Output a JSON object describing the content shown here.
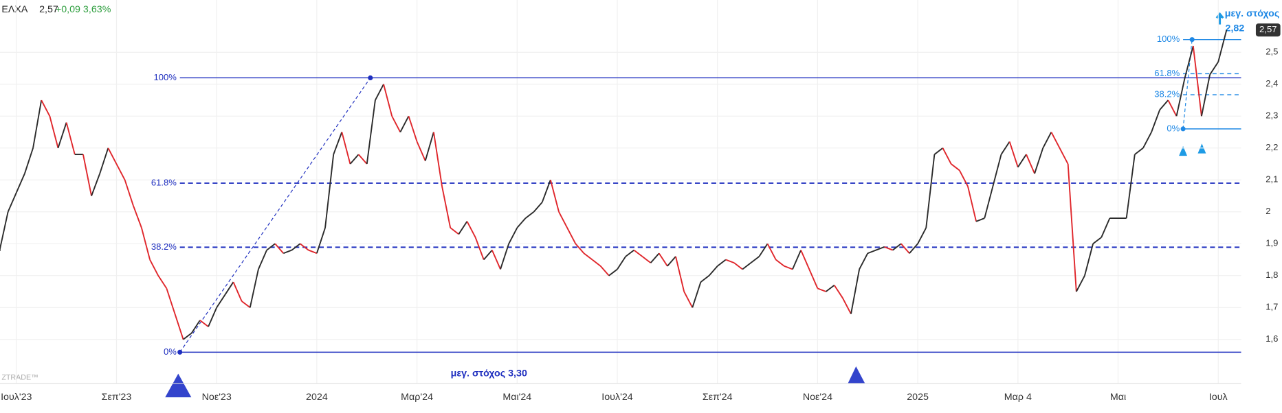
{
  "chart_data": {
    "type": "line",
    "ticker": "ΕΛΧΑ",
    "price_label": "2,57",
    "change": "+0,09 3,63%",
    "watermark": "ZTRADE™",
    "last_price": {
      "value": 2.57,
      "label": "2,57"
    },
    "categories": [
      null,
      null,
      "Ιουλ'23",
      null,
      null,
      null,
      null,
      null,
      null,
      null,
      null,
      null,
      null,
      null,
      "Σεπ'23",
      null,
      null,
      null,
      null,
      null,
      null,
      null,
      null,
      null,
      null,
      null,
      "Νοε'23",
      null,
      null,
      null,
      null,
      null,
      null,
      null,
      null,
      null,
      null,
      null,
      "2024",
      null,
      null,
      null,
      null,
      null,
      null,
      null,
      null,
      null,
      null,
      null,
      "Μαρ'24",
      null,
      null,
      null,
      null,
      null,
      null,
      null,
      null,
      null,
      null,
      null,
      "Μαι'24",
      null,
      null,
      null,
      null,
      null,
      null,
      null,
      null,
      null,
      null,
      null,
      "Ιουλ'24",
      null,
      null,
      null,
      null,
      null,
      null,
      null,
      null,
      null,
      null,
      null,
      "Σεπ'24",
      null,
      null,
      null,
      null,
      null,
      null,
      null,
      null,
      null,
      null,
      null,
      "Νοε'24",
      null,
      null,
      null,
      null,
      null,
      null,
      null,
      null,
      null,
      null,
      null,
      "2025",
      null,
      null,
      null,
      null,
      null,
      null,
      null,
      null,
      null,
      null,
      null,
      "Μαρ 4",
      null,
      null,
      null,
      null,
      null,
      null,
      null,
      null,
      null,
      null,
      null,
      "Μαι",
      null,
      null,
      null,
      null,
      null,
      null,
      null,
      null,
      null,
      null,
      null,
      "Ιουλ",
      null
    ],
    "values": [
      1.88,
      2.0,
      2.06,
      2.12,
      2.2,
      2.35,
      2.3,
      2.2,
      2.28,
      2.18,
      2.18,
      2.05,
      2.12,
      2.2,
      2.15,
      2.1,
      2.02,
      1.95,
      1.85,
      1.8,
      1.76,
      1.68,
      1.6,
      1.62,
      1.66,
      1.64,
      1.7,
      1.74,
      1.78,
      1.72,
      1.7,
      1.82,
      1.88,
      1.9,
      1.87,
      1.88,
      1.9,
      1.88,
      1.87,
      1.95,
      2.18,
      2.25,
      2.15,
      2.18,
      2.15,
      2.35,
      2.4,
      2.3,
      2.25,
      2.3,
      2.22,
      2.16,
      2.25,
      2.08,
      1.95,
      1.93,
      1.97,
      1.92,
      1.85,
      1.88,
      1.82,
      1.9,
      1.95,
      1.98,
      2.0,
      2.03,
      2.1,
      2.0,
      1.95,
      1.9,
      1.87,
      1.85,
      1.83,
      1.8,
      1.82,
      1.86,
      1.88,
      1.86,
      1.84,
      1.87,
      1.83,
      1.86,
      1.75,
      1.7,
      1.78,
      1.8,
      1.83,
      1.85,
      1.84,
      1.82,
      1.84,
      1.86,
      1.9,
      1.85,
      1.83,
      1.82,
      1.88,
      1.82,
      1.76,
      1.75,
      1.77,
      1.73,
      1.68,
      1.82,
      1.87,
      1.88,
      1.89,
      1.88,
      1.9,
      1.87,
      1.9,
      1.95,
      2.18,
      2.2,
      2.15,
      2.13,
      2.08,
      1.97,
      1.98,
      2.08,
      2.18,
      2.22,
      2.14,
      2.18,
      2.12,
      2.2,
      2.25,
      2.2,
      2.15,
      1.75,
      1.8,
      1.9,
      1.92,
      1.98,
      1.98,
      1.98,
      2.18,
      2.2,
      2.25,
      2.32,
      2.35,
      2.3,
      2.42,
      2.52,
      2.3,
      2.43,
      2.47,
      2.57
    ],
    "up_color": "#2b2b2b",
    "down_color": "#e0262b",
    "ylim": [
      1.462,
      2.664
    ],
    "yticks": [
      {
        "value": 1.6,
        "label": "1,6"
      },
      {
        "value": 1.7,
        "label": "1,7"
      },
      {
        "value": 1.8,
        "label": "1,8"
      },
      {
        "value": 1.9,
        "label": "1,9"
      },
      {
        "value": 2.0,
        "label": "2"
      },
      {
        "value": 2.1,
        "label": "2,1"
      },
      {
        "value": 2.2,
        "label": "2,2"
      },
      {
        "value": 2.3,
        "label": "2,3"
      },
      {
        "value": 2.4,
        "label": "2,4"
      },
      {
        "value": 2.5,
        "label": "2,5"
      }
    ],
    "grid": true,
    "fibonacci": [
      {
        "color": "#1f2fbf",
        "levels": [
          {
            "label": "100%",
            "price": 2.42
          },
          {
            "label": "61.8%",
            "price": 2.09
          },
          {
            "label": "38.2%",
            "price": 1.889
          },
          {
            "label": "0%",
            "price": 1.56
          }
        ],
        "target": "μεγ. στόχος 3,30"
      },
      {
        "color": "#1e88e5",
        "levels": [
          {
            "label": "100%",
            "price": 2.54
          },
          {
            "label": "61.8%",
            "price": 2.433
          },
          {
            "label": "38.2%",
            "price": 2.367
          },
          {
            "label": "0%",
            "price": 2.26
          }
        ],
        "target": "μεγ. στόχος",
        "target_price": "2,82"
      }
    ]
  }
}
